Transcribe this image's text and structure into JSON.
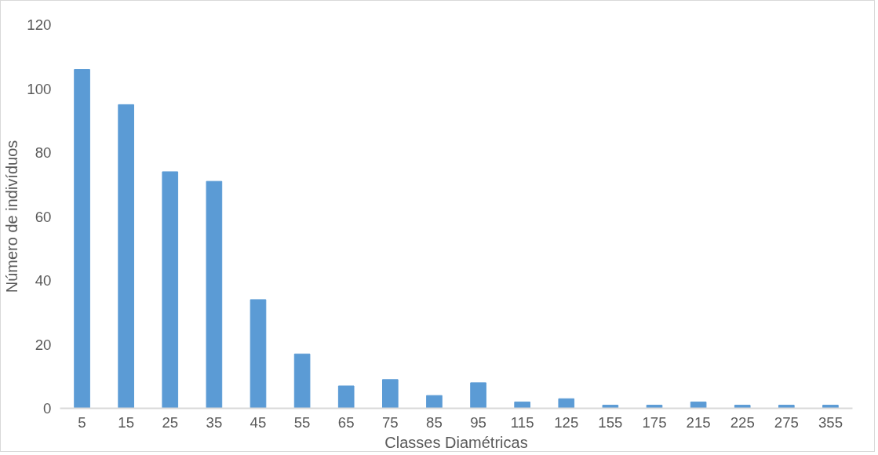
{
  "chart_data": {
    "type": "bar",
    "xlabel": "Classes Diamétricas",
    "ylabel": "Número de indivíduos",
    "categories": [
      "5",
      "15",
      "25",
      "35",
      "45",
      "55",
      "65",
      "75",
      "85",
      "95",
      "115",
      "125",
      "155",
      "175",
      "215",
      "225",
      "275",
      "355"
    ],
    "values": [
      106,
      95,
      74,
      71,
      34,
      17,
      7,
      9,
      4,
      8,
      2,
      3,
      1,
      1,
      2,
      1,
      1,
      1
    ],
    "color": "#5b9bd5",
    "ylim": [
      0,
      120
    ],
    "yticks": [
      0,
      20,
      40,
      60,
      80,
      100,
      120
    ],
    "grid": false
  }
}
